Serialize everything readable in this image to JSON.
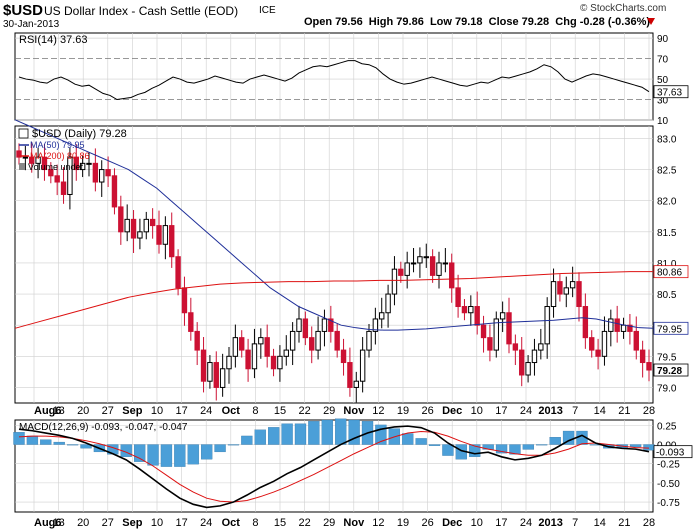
{
  "header": {
    "symbol": "$USD",
    "name": "US Dollar Index - Cash Settle (EOD)",
    "exchange": "ICE",
    "date": "30-Jan-2013",
    "ohlc": "Open 79.56  High 79.86  Low 79.18  Close 79.28  Chg -0.28 (-0.36%)",
    "watermark": "© StockCharts.com",
    "down_marker_color": "#cc0000"
  },
  "colors": {
    "up_candle": "#000000",
    "down_candle": "#cc1133",
    "ma50": "#1f2f99",
    "ma200": "#dd1111",
    "volume_bar": "#4b9fd8",
    "grid": "#cfcfcf",
    "panel_border": "#000000"
  },
  "chart_data": [
    {
      "type": "line",
      "title": "RSI(14) 37.63",
      "series": [
        {
          "name": "RSI(14)",
          "values": [
            52,
            50,
            49,
            47,
            46,
            50,
            52,
            49,
            45,
            43,
            44,
            40,
            36,
            34,
            30,
            31,
            32,
            35,
            37,
            41,
            44,
            48,
            52,
            50,
            47,
            46,
            48,
            50,
            53,
            51,
            49,
            47,
            46,
            50,
            52,
            54,
            52,
            50,
            48,
            51,
            56,
            59,
            62,
            63,
            62,
            64,
            66,
            68,
            68,
            65,
            64,
            61,
            55,
            50,
            47,
            45,
            46,
            48,
            50,
            52,
            50,
            48,
            46,
            44,
            43,
            45,
            47,
            46,
            49,
            52,
            51,
            53,
            55,
            57,
            60,
            64,
            62,
            57,
            50,
            47,
            50,
            53,
            55,
            54,
            52,
            50,
            48,
            46,
            44,
            42,
            37.63
          ]
        }
      ],
      "y_ticks": [
        10,
        30,
        50,
        70,
        90
      ],
      "reference_lines": [
        30,
        70
      ],
      "last_value_label": "37.63",
      "ylim": [
        10,
        95
      ]
    },
    {
      "type": "line",
      "title": "$USD (Daily) 79.28",
      "legend": [
        "$USD (Daily) 79.28",
        "MA(50) 79.95",
        "MA(200) 80.86",
        "Volume undef"
      ],
      "series": [
        {
          "name": "$USD (Daily)",
          "close": [
            82.7,
            82.7,
            82.6,
            82.7,
            82.5,
            82.4,
            82.3,
            82.1,
            82.7,
            82.5,
            82.6,
            82.6,
            82.3,
            82.5,
            82.4,
            81.9,
            81.5,
            81.7,
            81.4,
            81.5,
            81.7,
            81.6,
            81.3,
            81.6,
            81.1,
            80.6,
            80.2,
            79.9,
            79.6,
            79.1,
            79.4,
            79.0,
            79.3,
            79.5,
            79.8,
            79.6,
            79.3,
            79.7,
            79.8,
            79.5,
            79.3,
            79.5,
            79.6,
            79.9,
            80.1,
            79.8,
            79.6,
            79.9,
            80.1,
            79.9,
            79.6,
            79.4,
            79.0,
            79.1,
            79.6,
            79.9,
            80.1,
            80.2,
            80.5,
            80.9,
            80.8,
            81.0,
            81.0,
            81.1,
            81.1,
            80.8,
            81.0,
            81.0,
            80.6,
            80.3,
            80.2,
            80.3,
            80.0,
            79.8,
            79.6,
            80.1,
            80.2,
            79.7,
            79.6,
            79.2,
            79.4,
            79.6,
            79.7,
            80.3,
            80.7,
            80.5,
            80.6,
            80.7,
            80.3,
            79.8,
            79.6,
            79.5,
            79.9,
            80.1,
            79.9,
            80.0,
            79.9,
            79.6,
            79.4,
            79.28
          ]
        },
        {
          "name": "MA(50)",
          "values": [
            83.3,
            83.2,
            83.1,
            83.0,
            82.9,
            82.8,
            82.7,
            82.6,
            82.5,
            82.35,
            82.2,
            82.0,
            81.8,
            81.6,
            81.4,
            81.2,
            81.0,
            80.8,
            80.6,
            80.45,
            80.3,
            80.2,
            80.1,
            80.0,
            79.96,
            79.93,
            79.92,
            79.92,
            79.93,
            79.94,
            79.96,
            79.98,
            80.0,
            80.02,
            80.04,
            80.05,
            80.06,
            80.07,
            80.08,
            80.1,
            80.12,
            80.1,
            80.05,
            80.0,
            79.96,
            79.95
          ]
        },
        {
          "name": "MA(200)",
          "values": [
            79.95,
            80.05,
            80.15,
            80.25,
            80.35,
            80.45,
            80.52,
            80.58,
            80.62,
            80.66,
            80.68,
            80.69,
            80.7,
            80.7,
            80.71,
            80.71,
            80.72,
            80.72,
            80.73,
            80.74,
            80.75,
            80.77,
            80.79,
            80.81,
            80.83,
            80.84,
            80.85,
            80.86,
            80.86
          ]
        }
      ],
      "y_ticks": [
        79.0,
        79.5,
        80.0,
        80.5,
        81.0,
        81.5,
        82.0,
        82.5,
        83.0
      ],
      "value_labels": [
        "80.86",
        "79.95",
        "79.28"
      ],
      "ylim": [
        78.75,
        83.2
      ]
    },
    {
      "type": "line",
      "title": "MACD(12,26,9) -0.093, -0.047, -0.047",
      "series": [
        {
          "name": "MACD",
          "values": [
            0.2,
            0.18,
            0.15,
            0.12,
            0.08,
            0.02,
            -0.05,
            -0.12,
            -0.2,
            -0.32,
            -0.45,
            -0.58,
            -0.7,
            -0.78,
            -0.82,
            -0.8,
            -0.75,
            -0.66,
            -0.56,
            -0.48,
            -0.38,
            -0.3,
            -0.2,
            -0.1,
            0.0,
            0.08,
            0.15,
            0.2,
            0.23,
            0.24,
            0.22,
            0.15,
            0.02,
            -0.08,
            -0.12,
            -0.1,
            -0.16,
            -0.2,
            -0.18,
            -0.14,
            -0.05,
            0.05,
            0.12,
            0.02,
            -0.03,
            -0.05,
            -0.06,
            -0.093
          ]
        },
        {
          "name": "Signal",
          "values": [
            0.1,
            0.11,
            0.11,
            0.1,
            0.08,
            0.05,
            0.01,
            -0.04,
            -0.1,
            -0.18,
            -0.28,
            -0.4,
            -0.52,
            -0.62,
            -0.7,
            -0.74,
            -0.75,
            -0.73,
            -0.68,
            -0.62,
            -0.55,
            -0.47,
            -0.39,
            -0.3,
            -0.21,
            -0.12,
            -0.04,
            0.04,
            0.1,
            0.15,
            0.17,
            0.16,
            0.11,
            0.04,
            -0.02,
            -0.06,
            -0.09,
            -0.12,
            -0.14,
            -0.14,
            -0.11,
            -0.06,
            0.01,
            0.02,
            0.0,
            -0.02,
            -0.04,
            -0.047
          ]
        }
      ],
      "y_ticks": [
        -0.75,
        -0.5,
        -0.25,
        0.0,
        0.25
      ],
      "last_value_label": "-0.093",
      "ylim": [
        -0.88,
        0.32
      ]
    }
  ],
  "x_axis": {
    "labels": [
      "Aug6",
      "13",
      "20",
      "27",
      "Sep",
      "10",
      "17",
      "24",
      "Oct",
      "8",
      "15",
      "22",
      "29",
      "Nov",
      "12",
      "19",
      "26",
      "Dec",
      "10",
      "17",
      "24",
      "2013",
      "7",
      "14",
      "21",
      "28"
    ],
    "bold": [
      "Aug6",
      "Sep",
      "Oct",
      "Nov",
      "Dec",
      "2013"
    ]
  }
}
